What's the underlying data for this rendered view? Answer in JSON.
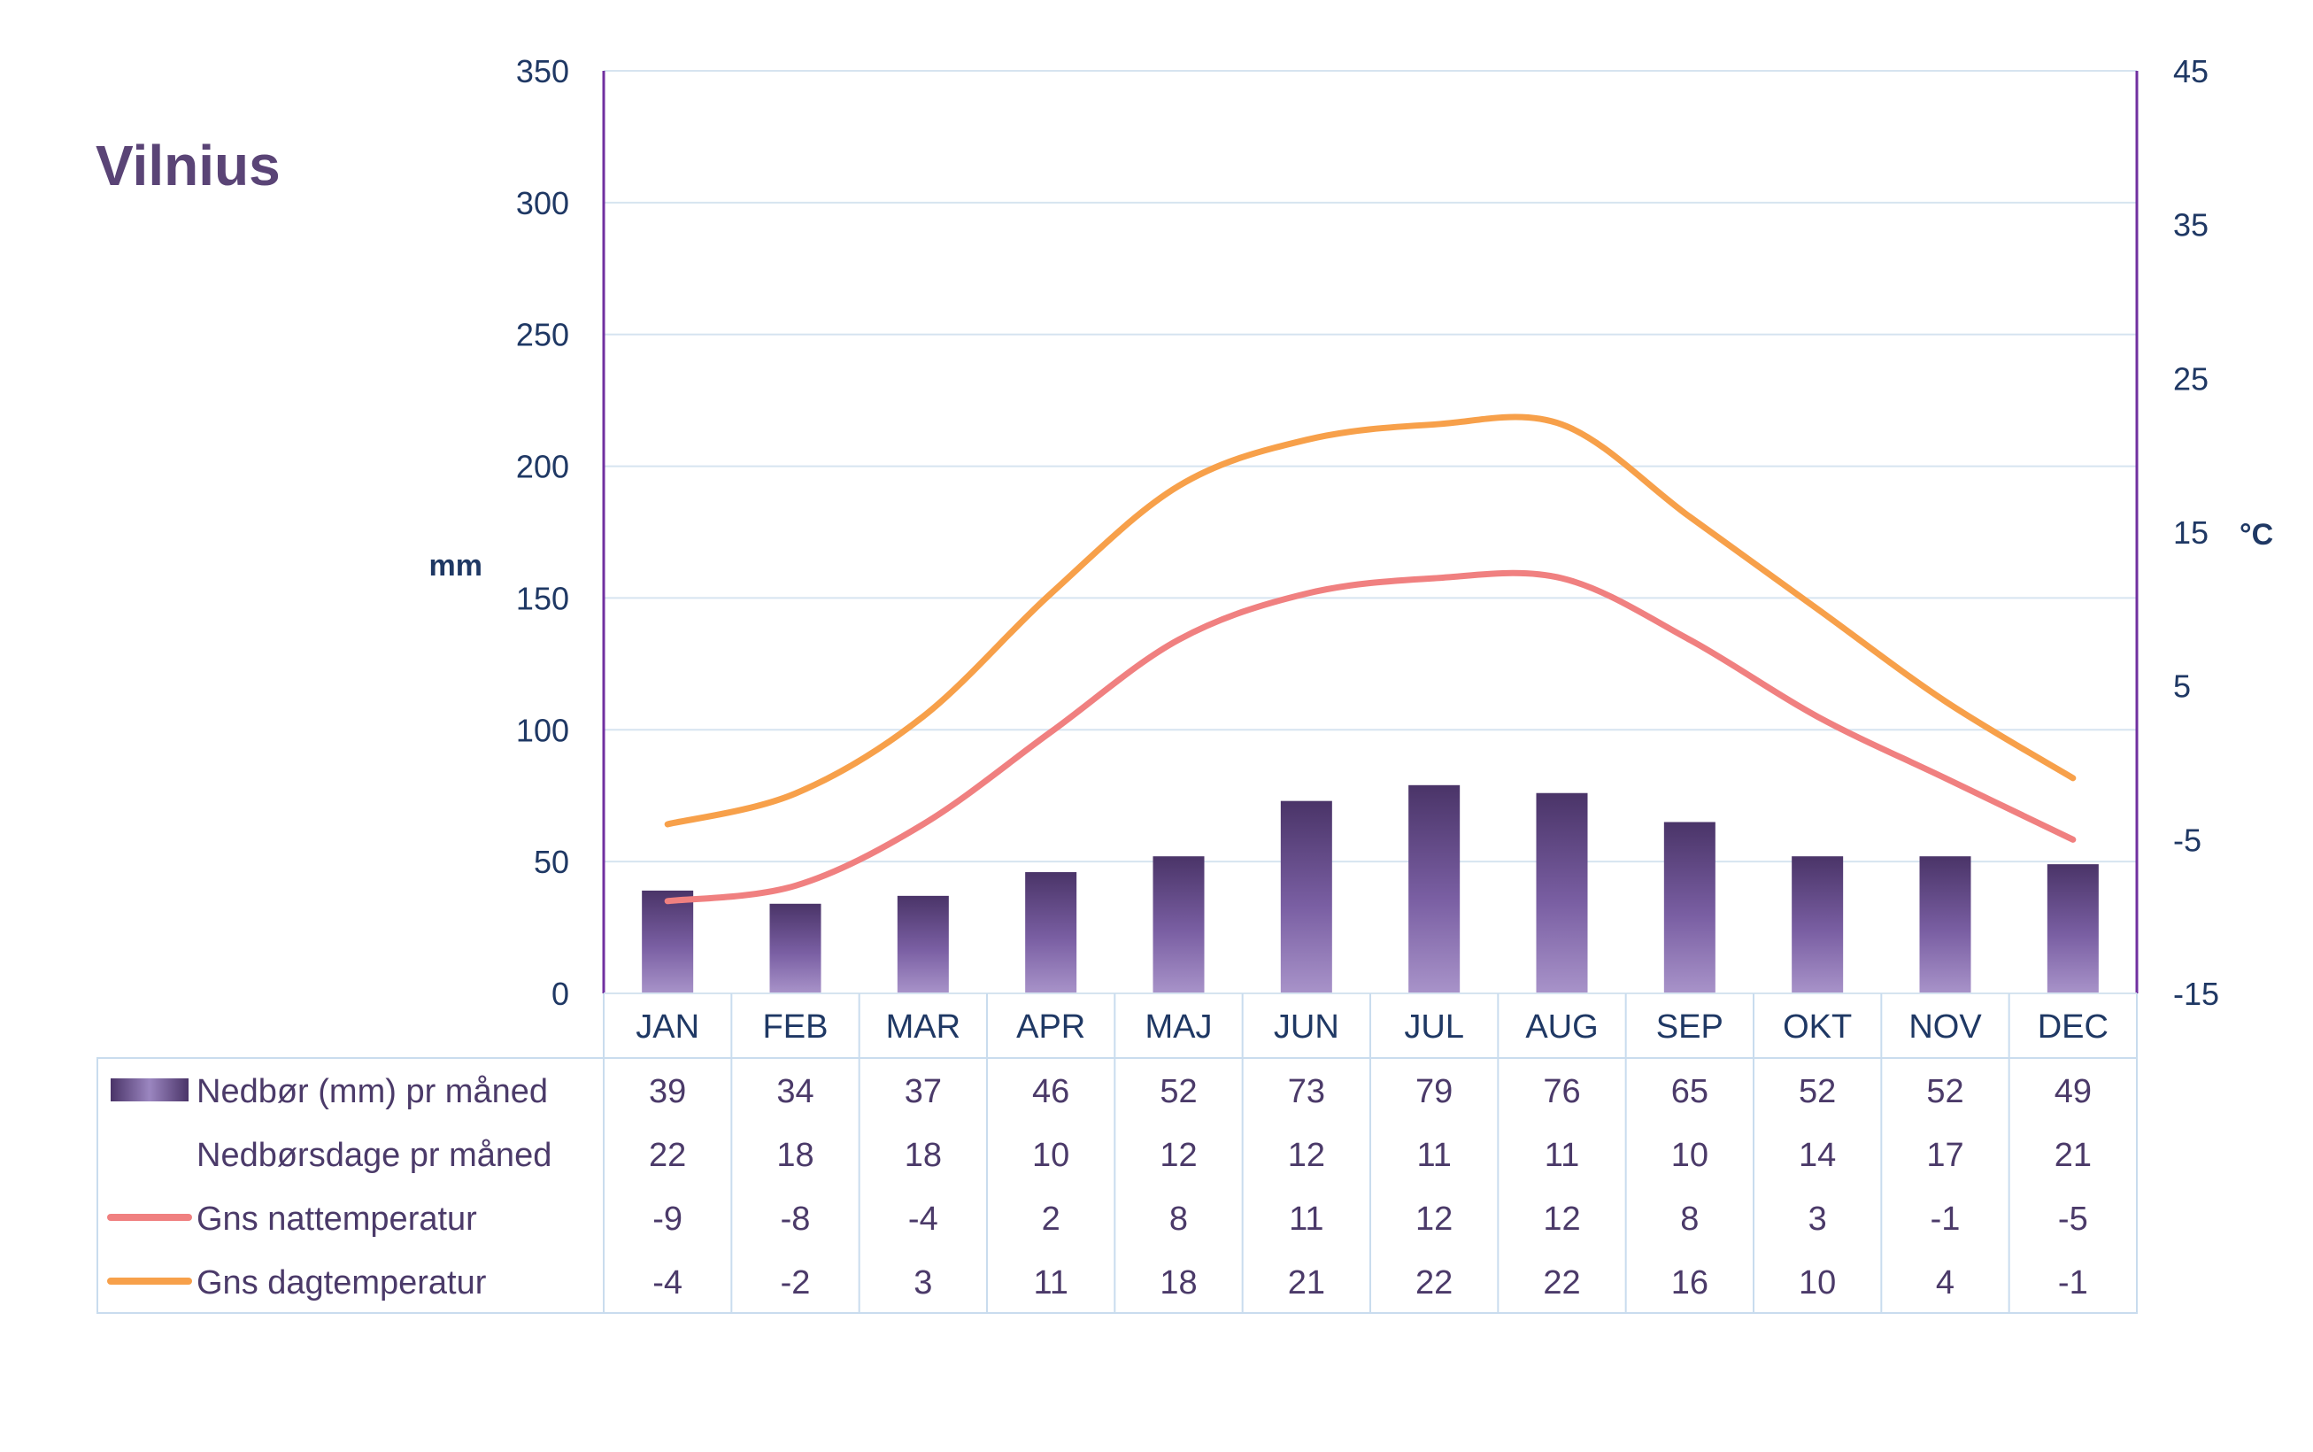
{
  "chart_data": {
    "type": "bar",
    "title": "Vilnius",
    "categories": [
      "JAN",
      "FEB",
      "MAR",
      "APR",
      "MAJ",
      "JUN",
      "JUL",
      "AUG",
      "SEP",
      "OKT",
      "NOV",
      "DEC"
    ],
    "y_left": {
      "label": "mm",
      "ticks": [
        0,
        50,
        100,
        150,
        200,
        250,
        300,
        350
      ],
      "range": [
        0,
        350
      ]
    },
    "y_right": {
      "label": "°C",
      "ticks": [
        -15,
        -5,
        5,
        15,
        25,
        35,
        45
      ],
      "range": [
        -15,
        45
      ]
    },
    "grid": true,
    "series": [
      {
        "name": "Nedbør (mm) pr måned",
        "type": "bar",
        "axis": "left",
        "color": "#5b4480",
        "values": [
          39,
          34,
          37,
          46,
          52,
          73,
          79,
          76,
          65,
          52,
          52,
          49
        ]
      },
      {
        "name": "Nedbørsdage pr måned",
        "type": "table-only",
        "values": [
          22,
          18,
          18,
          10,
          12,
          12,
          11,
          11,
          10,
          14,
          17,
          21
        ]
      },
      {
        "name": "Gns nattemperatur",
        "type": "line",
        "axis": "right",
        "color": "#f08080",
        "values": [
          -9,
          -8,
          -4,
          2,
          8,
          11,
          12,
          12,
          8,
          3,
          -1,
          -5
        ]
      },
      {
        "name": "Gns dagtemperatur",
        "type": "line",
        "axis": "right",
        "color": "#f7a04a",
        "values": [
          -4,
          -2,
          3,
          11,
          18,
          21,
          22,
          22,
          16,
          10,
          4,
          -1
        ]
      }
    ]
  },
  "colors": {
    "axis_text": "#1f3864",
    "table_text": "#4b3a69",
    "grid": "#d6e4f0",
    "axis_line": "#7030a0"
  }
}
